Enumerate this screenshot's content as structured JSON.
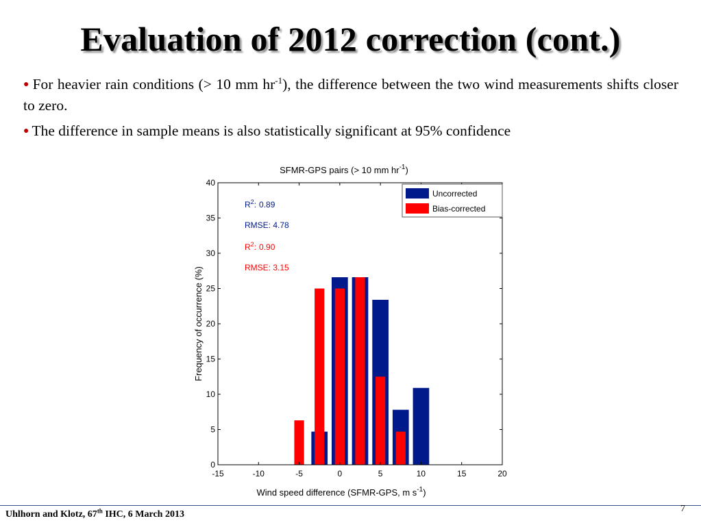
{
  "slide": {
    "title": "Evaluation of 2012 correction (cont.)",
    "bullets": [
      {
        "text_before": "For heavier rain conditions (> 10 mm hr",
        "sup": "-1",
        "text_after": "), the difference between the two wind measurements shifts closer to zero."
      },
      {
        "text": "The difference in sample means is also statistically significant at 95% confidence"
      }
    ],
    "footer": {
      "text_before": "Uhlhorn and Klotz, 67",
      "sup": "th",
      "text_after": " IHC, 6 March 2013"
    },
    "page_number": "7"
  },
  "colors": {
    "uncorrected": "#001a8c",
    "bias_corrected": "#ff0000",
    "bullet": "#c00000"
  },
  "chart_data": {
    "type": "bar",
    "title": "SFMR-GPS pairs (> 10 mm hr",
    "title_sup": "-1",
    "title_end": ")",
    "xlabel": "Wind speed difference (SFMR-GPS, m s",
    "xlabel_sup": "-1",
    "xlabel_end": ")",
    "ylabel": "Frequency of occurrence (%)",
    "xlim": [
      -15,
      20
    ],
    "ylim": [
      0,
      40
    ],
    "xticks": [
      "-15",
      "-10",
      "-5",
      "0",
      "5",
      "10",
      "15",
      "20"
    ],
    "yticks": [
      "0",
      "5",
      "10",
      "15",
      "20",
      "25",
      "30",
      "35",
      "40"
    ],
    "legend_position": "top-right",
    "series": [
      {
        "name": "Uncorrected",
        "x": [
          -2.5,
          0,
          2.5,
          5,
          7.5,
          10
        ],
        "values": [
          4.7,
          26.6,
          26.6,
          23.4,
          7.8,
          10.9
        ]
      },
      {
        "name": "Bias-corrected",
        "x": [
          -5,
          -2.5,
          0,
          2.5,
          5,
          7.5
        ],
        "values": [
          6.3,
          25.0,
          25.0,
          26.6,
          12.5,
          4.7
        ]
      }
    ],
    "annotations": [
      {
        "label": "R",
        "sup": "2",
        "sep": ":",
        "value": "0.89",
        "series": "Uncorrected"
      },
      {
        "label": "RMSE: 4.78",
        "series": "Uncorrected"
      },
      {
        "label": "R",
        "sup": "2",
        "sep": ":",
        "value": "0.90",
        "series": "Bias-corrected"
      },
      {
        "label": "RMSE: 3.15",
        "series": "Bias-corrected"
      }
    ]
  }
}
